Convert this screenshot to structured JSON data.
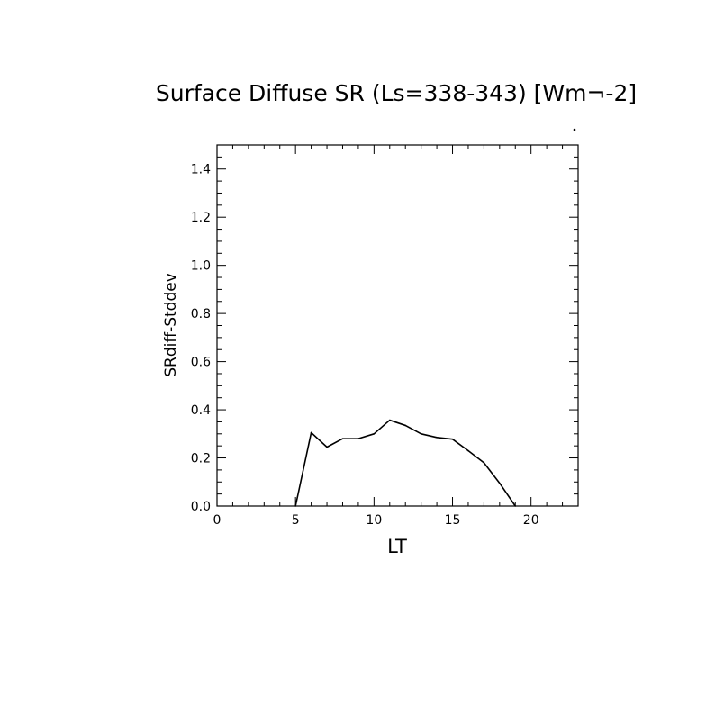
{
  "chart_data": {
    "type": "line",
    "title": "Surface Diffuse SR (Ls=338-343) [Wm¬-2]",
    "xlabel": "LT",
    "ylabel": "SRdiff-Stddev",
    "xlim": [
      0,
      23
    ],
    "ylim": [
      0,
      1.5
    ],
    "xticks": [
      "0",
      "5",
      "10",
      "15",
      "20"
    ],
    "yticks": [
      "0.0",
      "0.2",
      "0.4",
      "0.6",
      "0.8",
      "1.0",
      "1.2",
      "1.4"
    ],
    "grid": false,
    "series": [
      {
        "x": [
          5,
          6,
          7,
          8,
          9,
          10,
          11,
          12,
          13,
          14,
          15,
          16,
          17,
          18,
          19
        ],
        "values": [
          0.0,
          0.305,
          0.245,
          0.28,
          0.28,
          0.3,
          0.357,
          0.335,
          0.3,
          0.285,
          0.278,
          0.23,
          0.18,
          0.095,
          0.0
        ]
      }
    ]
  }
}
